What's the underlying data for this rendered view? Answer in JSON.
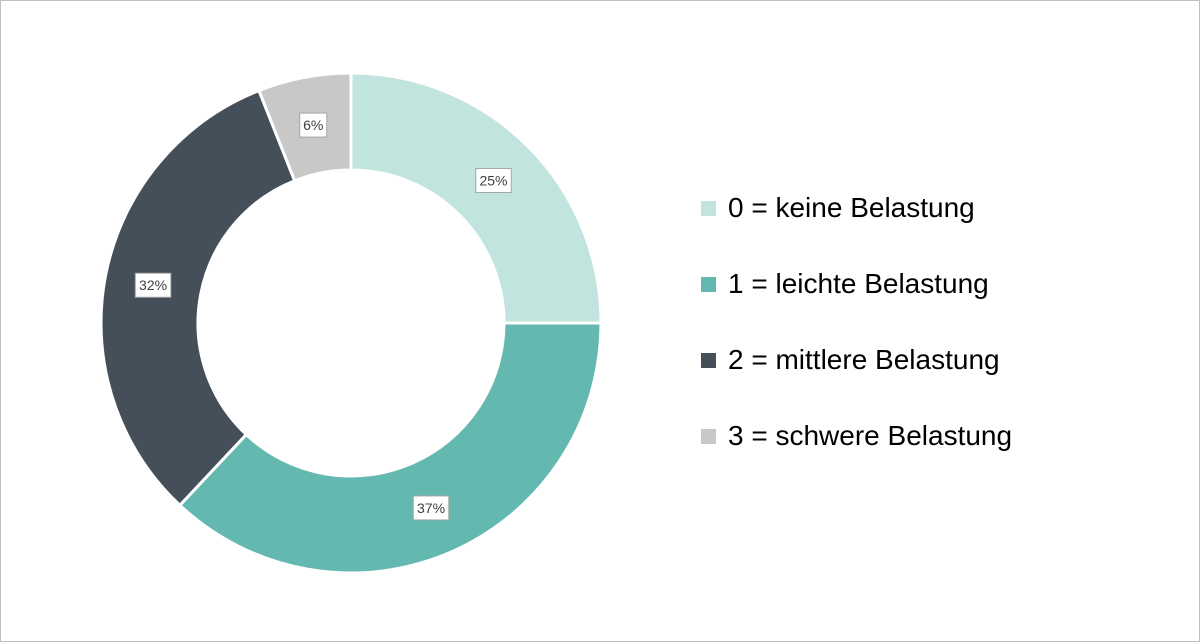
{
  "chart_data": {
    "type": "pie",
    "donut": true,
    "title": "",
    "categories": [
      "0 = keine Belastung",
      "1 = leichte Belastung",
      "2 = mittlere Belastung",
      "3 = schwere Belastung"
    ],
    "values": [
      25,
      37,
      32,
      6
    ],
    "labels": [
      "25%",
      "37%",
      "32%",
      "6%"
    ],
    "colors": [
      "#c2e4df",
      "#63b8b0",
      "#454f5a",
      "#c8c8c8"
    ],
    "legend_position": "right",
    "start": "top",
    "direction": "clockwise"
  }
}
